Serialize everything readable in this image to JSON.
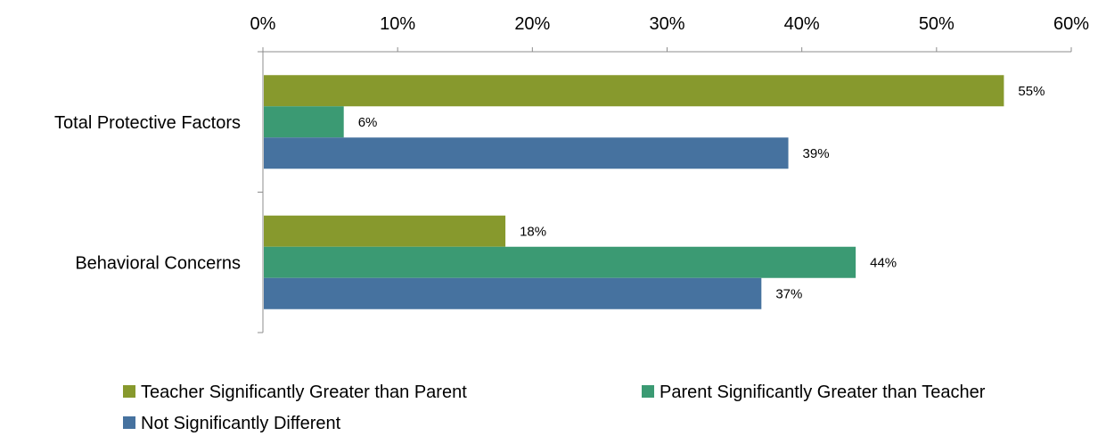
{
  "chart_data": {
    "type": "bar",
    "orientation": "horizontal",
    "categories": [
      "Total Protective Factors",
      "Behavioral Concerns"
    ],
    "series": [
      {
        "name": "Teacher Significantly Greater than Parent",
        "values": [
          55,
          18
        ],
        "color": "#87992d"
      },
      {
        "name": "Parent Significantly Greater than Teacher",
        "values": [
          6,
          44
        ],
        "color": "#3b9a73"
      },
      {
        "name": "Not Significantly Different",
        "values": [
          39,
          37
        ],
        "color": "#46729f"
      }
    ],
    "data_labels": [
      [
        "55%",
        "18%"
      ],
      [
        "6%",
        "44%"
      ],
      [
        "39%",
        "37%"
      ]
    ],
    "x_ticks": [
      "0%",
      "10%",
      "20%",
      "30%",
      "40%",
      "50%",
      "60%"
    ],
    "xlim": [
      0,
      60
    ],
    "x_axis_position": "top",
    "grid": false,
    "legend_position": "bottom"
  }
}
